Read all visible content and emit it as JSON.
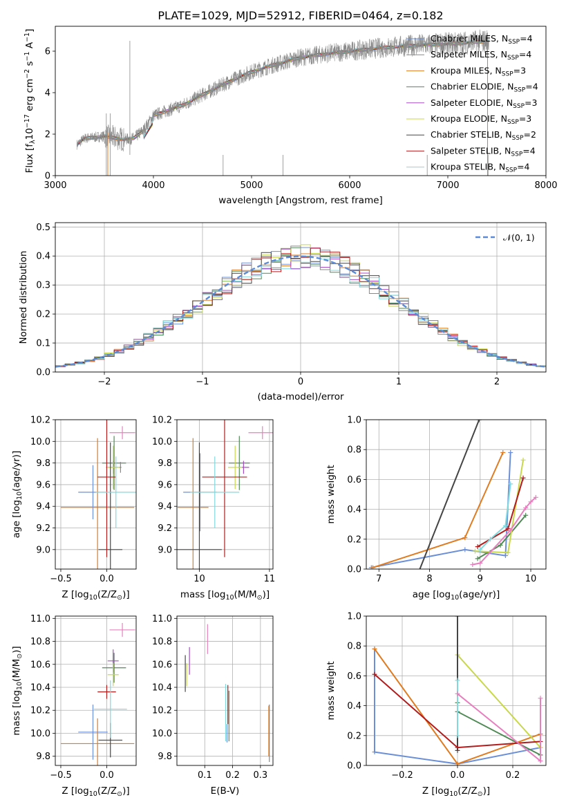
{
  "figure_title": "PLATE=1029, MJD=52912, FIBERID=0464, z=0.182",
  "models": [
    {
      "label": "Chabrier MILES, N",
      "sub": "SSP",
      "tail": "=4",
      "color": "#6a8fd8"
    },
    {
      "label": "Salpeter MILES, N",
      "sub": "SSP",
      "tail": "=4",
      "color": "#888888"
    },
    {
      "label": "Kroupa MILES, N",
      "sub": "SSP",
      "tail": "=3",
      "color": "#e07b20"
    },
    {
      "label": "Chabrier ELODIE, N",
      "sub": "SSP",
      "tail": "=4",
      "color": "#4f8a55"
    },
    {
      "label": "Salpeter ELODIE, N",
      "sub": "SSP",
      "tail": "=3",
      "color": "#a74dc4"
    },
    {
      "label": "Kroupa ELODIE, N",
      "sub": "SSP",
      "tail": "=3",
      "color": "#c8d84a"
    },
    {
      "label": "Chabrier STELIB, N",
      "sub": "SSP",
      "tail": "=2",
      "color": "#444444"
    },
    {
      "label": "Salpeter STELIB, N",
      "sub": "SSP",
      "tail": "=4",
      "color": "#b31b1b"
    },
    {
      "label": "Kroupa STELIB, N",
      "sub": "SSP",
      "tail": "=4",
      "color": "#7fd9dd"
    }
  ],
  "chart_data": [
    {
      "id": "spectrum",
      "type": "line",
      "xlabel": "wavelength [Angstrom, rest frame]",
      "ylabel": "Flux [f",
      "ylabel_sub": "λ",
      "ylabel_mid": "10",
      "ylabel_sup": "−17",
      "ylabel_rest": " erg cm",
      "ylabel_sup2": "−2",
      "ylabel_rest2": " s",
      "ylabel_sup3": "−1",
      "ylabel_rest3": " A",
      "ylabel_sup4": "−1",
      "ylabel_end": "]",
      "xlim": [
        3000,
        8000
      ],
      "ylim": [
        0,
        7.2
      ],
      "xticks": [
        "3000",
        "4000",
        "5000",
        "6000",
        "7000",
        "8000"
      ],
      "yticks": [
        "0",
        "2",
        "4",
        "6"
      ],
      "continuum": [
        [
          3220,
          1.5
        ],
        [
          3300,
          1.8
        ],
        [
          3500,
          1.9
        ],
        [
          3700,
          1.75
        ],
        [
          3800,
          1.8
        ],
        [
          3900,
          2.2
        ],
        [
          4000,
          2.9
        ],
        [
          4300,
          3.4
        ],
        [
          4500,
          3.9
        ],
        [
          4800,
          4.6
        ],
        [
          5000,
          5.0
        ],
        [
          5200,
          5.3
        ],
        [
          5500,
          5.7
        ],
        [
          5800,
          5.9
        ],
        [
          6000,
          6.0
        ],
        [
          6300,
          6.15
        ],
        [
          6700,
          6.3
        ],
        [
          7000,
          6.35
        ],
        [
          7300,
          6.45
        ],
        [
          7420,
          6.5
        ]
      ],
      "data_range": [
        3220,
        7420
      ]
    },
    {
      "id": "residuals",
      "type": "step",
      "xlabel": "(data-model)/error",
      "ylabel": "Normed distribution",
      "xlim": [
        -2.5,
        2.5
      ],
      "ylim": [
        0,
        0.515
      ],
      "xticks": [
        "−2",
        "−1",
        "0",
        "1",
        "2"
      ],
      "yticks": [
        "0.0",
        "0.1",
        "0.2",
        "0.3",
        "0.4",
        "0.5"
      ],
      "grid": true,
      "legend": "𝒩(0, 1)",
      "bin_width": 0.1,
      "normal_mu": 0,
      "normal_sigma": 1
    },
    {
      "id": "age_vs_Z",
      "type": "errorbar",
      "xlabel": "Z [log",
      "xlabel_sub": "10",
      "xlabel_rest": "(Z/Z",
      "xlabel_sub2": "⊙",
      "xlabel_end": ")]",
      "ylabel": "age  [log",
      "ylabel_sub": "10",
      "ylabel_rest": "(age/yr)]",
      "xlim": [
        -0.56,
        0.32
      ],
      "ylim": [
        8.82,
        10.2
      ],
      "xticks": [
        "−0.5",
        "0.0"
      ],
      "yticks": [
        "9.0",
        "9.2",
        "9.4",
        "9.6",
        "9.8",
        "10.0",
        "10.2"
      ],
      "points": [
        {
          "model": 0,
          "x": -0.15,
          "xerr": 0.16,
          "y": 9.53,
          "yerr": 0.25
        },
        {
          "model": 2,
          "x": -0.1,
          "xerr": 0.4,
          "y": 9.39,
          "yerr": 0.64
        },
        {
          "model": 3,
          "x": 0.08,
          "xerr": 0.13,
          "y": 9.8,
          "yerr": 0.25
        },
        {
          "model": 4,
          "x": 0.07,
          "xerr": 0.06,
          "y": 9.76,
          "yerr": 0.06
        },
        {
          "model": 5,
          "x": 0.07,
          "xerr": 0.08,
          "y": 9.76,
          "yerr": 0.2
        },
        {
          "model": 6,
          "x": 0.04,
          "xerr": 0.13,
          "y": 9.0,
          "yerr": 0.99
        },
        {
          "model": 7,
          "x": 0.0,
          "xerr": 0.1,
          "y": 9.67,
          "yerr": 0.74
        },
        {
          "model": 8,
          "x": 0.1,
          "xerr": 0.22,
          "y": 9.53,
          "yerr": 0.33
        },
        {
          "model": 1,
          "x": 0.15,
          "xerr": 0.01,
          "y": 9.76,
          "yerr": 0.05
        },
        {
          "model": -1,
          "x": 0.17,
          "xerr": 0.14,
          "y": 10.08,
          "yerr": 0.06,
          "color": "#e77fbf"
        }
      ]
    },
    {
      "id": "age_vs_mass",
      "type": "errorbar",
      "xlabel": "mass [log",
      "xlabel_sub": "10",
      "xlabel_rest": "(M/M",
      "xlabel_sub2": "⊙",
      "xlabel_end": ")]",
      "xlim": [
        9.68,
        11.05
      ],
      "ylim": [
        8.82,
        10.2
      ],
      "xticks": [
        "10",
        "11"
      ],
      "yticks": [
        "9.0",
        "9.2",
        "9.4",
        "9.6",
        "9.8",
        "10.0",
        "10.2"
      ],
      "points": [
        {
          "model": 0,
          "x": 10.01,
          "xerr": 0.24,
          "y": 9.53,
          "yerr": 0.36
        },
        {
          "model": 2,
          "x": 9.91,
          "xerr": 0.22,
          "y": 9.39,
          "yerr": 0.64
        },
        {
          "model": 3,
          "x": 10.57,
          "xerr": 0.15,
          "y": 9.8,
          "yerr": 0.25
        },
        {
          "model": 4,
          "x": 10.63,
          "xerr": 0.08,
          "y": 9.76,
          "yerr": 0.06
        },
        {
          "model": 5,
          "x": 10.51,
          "xerr": 0.1,
          "y": 9.76,
          "yerr": 0.2
        },
        {
          "model": 6,
          "x": 10.0,
          "xerr": 0.32,
          "y": 9.0,
          "yerr": 0.99
        },
        {
          "model": 7,
          "x": 10.36,
          "xerr": 0.32,
          "y": 9.67,
          "yerr": 0.74
        },
        {
          "model": 8,
          "x": 10.22,
          "xerr": 0.35,
          "y": 9.53,
          "yerr": 0.33
        },
        {
          "model": -1,
          "x": 10.9,
          "xerr": 0.2,
          "y": 10.08,
          "yerr": 0.06,
          "color": "#e77fbf"
        }
      ]
    },
    {
      "id": "weight_vs_age",
      "type": "line",
      "xlabel": "age  [log",
      "xlabel_sub": "10",
      "xlabel_rest": "(age/yr)]",
      "ylabel": "mass weight",
      "xlim": [
        6.75,
        10.3
      ],
      "ylim": [
        0,
        1.0
      ],
      "xticks": [
        "7",
        "8",
        "9",
        "10"
      ],
      "yticks": [
        "0.0",
        "0.2",
        "0.4",
        "0.6",
        "0.8",
        "1.0"
      ],
      "series": [
        {
          "model": 0,
          "points": [
            [
              6.85,
              0.01
            ],
            [
              8.7,
              0.13
            ],
            [
              9.5,
              0.09
            ],
            [
              9.6,
              0.78
            ]
          ]
        },
        {
          "model": 2,
          "points": [
            [
              6.88,
              0.01
            ],
            [
              8.7,
              0.21
            ],
            [
              9.45,
              0.78
            ]
          ]
        },
        {
          "model": 3,
          "points": [
            [
              8.95,
              0.07
            ],
            [
              9.4,
              0.16
            ],
            [
              9.9,
              0.36
            ]
          ]
        },
        {
          "model": 5,
          "points": [
            [
              8.9,
              0.12
            ],
            [
              9.55,
              0.11
            ],
            [
              9.85,
              0.73
            ]
          ]
        },
        {
          "model": 6,
          "points": [
            [
              7.75,
              -0.05
            ],
            [
              8.98,
              1.0
            ]
          ]
        },
        {
          "model": 7,
          "points": [
            [
              8.95,
              0.15
            ],
            [
              9.55,
              0.27
            ],
            [
              9.85,
              0.61
            ]
          ]
        },
        {
          "model": 8,
          "points": [
            [
              9.0,
              0.13
            ],
            [
              9.2,
              0.2
            ],
            [
              9.5,
              0.29
            ],
            [
              9.6,
              0.57
            ]
          ]
        },
        {
          "model": -1,
          "color": "#e77fbf",
          "points": [
            [
              8.85,
              0.03
            ],
            [
              9.0,
              0.04
            ],
            [
              9.6,
              0.26
            ],
            [
              9.9,
              0.41
            ],
            [
              10.0,
              0.45
            ],
            [
              10.1,
              0.48
            ]
          ]
        }
      ]
    },
    {
      "id": "mass_vs_Z",
      "type": "errorbar",
      "xlabel": "Z [log",
      "xlabel_sub": "10",
      "xlabel_rest": "(Z/Z",
      "xlabel_sub2": "⊙",
      "xlabel_end": ")]",
      "ylabel": "mass [log",
      "ylabel_sub": "10",
      "ylabel_rest": "(M/M",
      "ylabel_sub2": "⊙",
      "ylabel_end": ")]",
      "xlim": [
        -0.56,
        0.32
      ],
      "ylim": [
        9.72,
        11.02
      ],
      "xticks": [
        "−0.5",
        "0.0"
      ],
      "yticks": [
        "9.8",
        "10.0",
        "10.2",
        "10.4",
        "10.6",
        "10.8",
        "11.0"
      ],
      "points": [
        {
          "model": 0,
          "x": -0.15,
          "xerr": 0.16,
          "y": 10.01,
          "yerr": 0.24
        },
        {
          "model": 2,
          "x": -0.1,
          "xerr": 0.4,
          "y": 9.91,
          "yerr": 0.22
        },
        {
          "model": 3,
          "x": 0.08,
          "xerr": 0.13,
          "y": 10.57,
          "yerr": 0.13
        },
        {
          "model": 4,
          "x": 0.07,
          "xerr": 0.06,
          "y": 10.63,
          "yerr": 0.1
        },
        {
          "model": 5,
          "x": 0.07,
          "xerr": 0.06,
          "y": 10.51,
          "yerr": 0.1
        },
        {
          "model": 6,
          "x": 0.04,
          "xerr": 0.13,
          "y": 9.94,
          "yerr": 0.15
        },
        {
          "model": 7,
          "x": 0.0,
          "xerr": 0.1,
          "y": 10.36,
          "yerr": 0.06
        },
        {
          "model": 8,
          "x": 0.04,
          "xerr": 0.18,
          "y": 10.21,
          "yerr": 0.25
        },
        {
          "model": -1,
          "x": 0.17,
          "xerr": 0.14,
          "y": 10.9,
          "yerr": 0.06,
          "color": "#e77fbf"
        }
      ]
    },
    {
      "id": "mass_vs_ebv",
      "type": "errorbar",
      "xlabel": "E(B-V)",
      "xlim": [
        0.0,
        0.345
      ],
      "ylim": [
        9.72,
        11.02
      ],
      "xticks": [
        "0.1",
        "0.2",
        "0.3"
      ],
      "yticks": [
        "9.8",
        "10.0",
        "10.2",
        "10.4",
        "10.6",
        "10.8",
        "11.0"
      ],
      "points": [
        {
          "model": 6,
          "x": 0.03,
          "xerr": 0.0,
          "y": 10.52,
          "yerr": 0.16
        },
        {
          "model": 5,
          "x": 0.035,
          "xerr": 0.0,
          "y": 10.51,
          "yerr": 0.1
        },
        {
          "model": 4,
          "x": 0.045,
          "xerr": 0.0,
          "y": 10.63,
          "yerr": 0.12
        },
        {
          "model": -1,
          "x": 0.11,
          "xerr": 0.0,
          "y": 10.82,
          "yerr": 0.13,
          "color": "#e77fbf"
        },
        {
          "model": 8,
          "x": 0.175,
          "xerr": 0.0,
          "y": 10.18,
          "yerr": 0.25
        },
        {
          "model": 0,
          "x": 0.18,
          "xerr": 0.0,
          "y": 10.0,
          "yerr": 0.08
        },
        {
          "model": 7,
          "x": 0.183,
          "xerr": 0.0,
          "y": 10.25,
          "yerr": 0.17
        },
        {
          "model": 3,
          "x": 0.187,
          "xerr": 0.0,
          "y": 10.15,
          "yerr": 0.22
        },
        {
          "model": 2,
          "x": 0.33,
          "xerr": 0.0,
          "y": 10.02,
          "yerr": 0.22
        },
        {
          "model": 1,
          "x": 0.332,
          "xerr": 0.0,
          "y": 10.0,
          "yerr": 0.25
        }
      ]
    },
    {
      "id": "weight_vs_Z",
      "type": "line",
      "xlabel": "Z [log",
      "xlabel_sub": "10",
      "xlabel_rest": "(Z/Z",
      "xlabel_sub2": "⊙",
      "xlabel_end": ")]",
      "ylabel": "mass weight",
      "xlim": [
        -0.33,
        0.32
      ],
      "ylim": [
        0,
        1.0
      ],
      "xticks": [
        "−0.2",
        "0.0",
        "0.2"
      ],
      "yticks": [
        "0.0",
        "0.2",
        "0.4",
        "0.6",
        "0.8",
        "1.0"
      ],
      "series": [
        {
          "model": 0,
          "points": [
            [
              -0.3,
              0.78
            ],
            [
              -0.3,
              0.09
            ],
            [
              0.0,
              0.01
            ],
            [
              0.3,
              0.12
            ]
          ]
        },
        {
          "model": 2,
          "points": [
            [
              -0.3,
              0.78
            ],
            [
              0.0,
              0.01
            ],
            [
              0.3,
              0.21
            ]
          ]
        },
        {
          "model": 3,
          "points": [
            [
              0.0,
              0.42
            ],
            [
              0.0,
              0.36
            ],
            [
              0.3,
              0.07
            ]
          ]
        },
        {
          "model": 5,
          "points": [
            [
              0.0,
              0.74
            ],
            [
              0.3,
              0.12
            ]
          ]
        },
        {
          "model": 6,
          "points": [
            [
              0.0,
              1.0
            ],
            [
              0.0,
              0.1
            ]
          ]
        },
        {
          "model": 7,
          "points": [
            [
              -0.3,
              0.61
            ],
            [
              0.0,
              0.12
            ],
            [
              0.3,
              0.16
            ]
          ]
        },
        {
          "model": 8,
          "points": [
            [
              0.0,
              0.57
            ],
            [
              0.0,
              0.2
            ]
          ]
        },
        {
          "model": -1,
          "color": "#e77fbf",
          "points": [
            [
              0.0,
              0.48
            ],
            [
              0.3,
              0.03
            ],
            [
              0.3,
              0.45
            ]
          ]
        }
      ]
    }
  ]
}
